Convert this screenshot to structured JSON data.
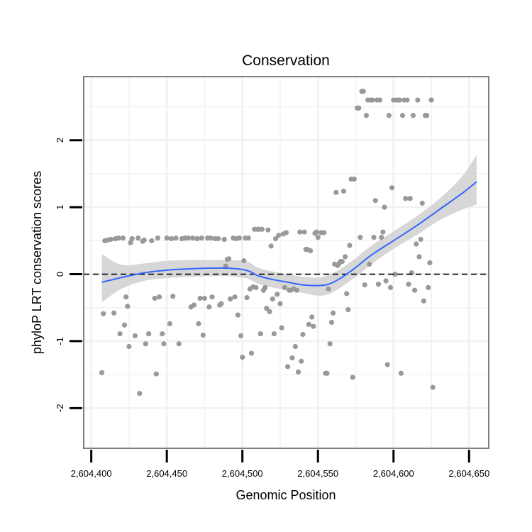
{
  "chart_data": {
    "type": "scatter",
    "title": "Conservation",
    "xlabel": "Genomic Position",
    "ylabel": "phyloP LRT conservation scores",
    "xlim": [
      2604395,
      2604663
    ],
    "ylim": [
      -2.6,
      2.95
    ],
    "x_ticks": [
      2604400,
      2604450,
      2604500,
      2604550,
      2604600,
      2604650
    ],
    "x_tick_labels": [
      "2,604,400",
      "2,604,450",
      "2,604,500",
      "2,604,550",
      "2,604,600",
      "2,604,650"
    ],
    "y_ticks": [
      -2,
      -1,
      0,
      1,
      2
    ],
    "y_tick_labels": [
      "-2",
      "-1",
      "0",
      "1",
      "2"
    ],
    "reference_line": {
      "y": 0,
      "style": "dashed"
    },
    "colors": {
      "points": "#999999",
      "smooth_line": "#3366ff",
      "confidence_band": "#d3d3d3",
      "panel_border": "#7f7f7f",
      "grid": "#f2f2f2"
    },
    "smooth": {
      "name": "loess fit",
      "x": [
        2604407,
        2604420,
        2604435,
        2604450,
        2604465,
        2604480,
        2604490,
        2604500,
        2604505,
        2604510,
        2604520,
        2604530,
        2604540,
        2604550,
        2604557,
        2604565,
        2604575,
        2604585,
        2604600,
        2604615,
        2604630,
        2604645,
        2604655
      ],
      "y": [
        -0.12,
        -0.05,
        0.02,
        0.06,
        0.08,
        0.09,
        0.09,
        0.07,
        0.04,
        -0.02,
        -0.08,
        -0.12,
        -0.16,
        -0.17,
        -0.15,
        -0.06,
        0.1,
        0.28,
        0.5,
        0.72,
        0.96,
        1.2,
        1.38
      ],
      "lower": [
        -0.42,
        -0.22,
        -0.1,
        -0.06,
        -0.04,
        -0.03,
        -0.03,
        -0.05,
        -0.08,
        -0.14,
        -0.2,
        -0.24,
        -0.28,
        -0.32,
        -0.3,
        -0.2,
        -0.04,
        0.14,
        0.38,
        0.58,
        0.8,
        0.96,
        1.04
      ],
      "upper": [
        0.3,
        0.14,
        0.16,
        0.2,
        0.21,
        0.21,
        0.21,
        0.2,
        0.17,
        0.1,
        0.04,
        0.0,
        -0.04,
        -0.05,
        -0.01,
        0.08,
        0.24,
        0.42,
        0.64,
        0.86,
        1.12,
        1.45,
        1.78
      ]
    },
    "points": [
      {
        "x": 2604407,
        "y": -1.47
      },
      {
        "x": 2604408,
        "y": -0.59
      },
      {
        "x": 2604409,
        "y": 0.5
      },
      {
        "x": 2604411,
        "y": 0.51
      },
      {
        "x": 2604413,
        "y": 0.52
      },
      {
        "x": 2604415,
        "y": -0.58
      },
      {
        "x": 2604416,
        "y": 0.53
      },
      {
        "x": 2604418,
        "y": 0.54
      },
      {
        "x": 2604419,
        "y": -0.89
      },
      {
        "x": 2604421,
        "y": 0.54
      },
      {
        "x": 2604422,
        "y": -0.76
      },
      {
        "x": 2604423,
        "y": -0.34
      },
      {
        "x": 2604424,
        "y": -0.48
      },
      {
        "x": 2604425,
        "y": -1.08
      },
      {
        "x": 2604426,
        "y": 0.47
      },
      {
        "x": 2604427,
        "y": 0.53
      },
      {
        "x": 2604429,
        "y": -0.92
      },
      {
        "x": 2604431,
        "y": 0.54
      },
      {
        "x": 2604432,
        "y": -1.78
      },
      {
        "x": 2604434,
        "y": 0.49
      },
      {
        "x": 2604435,
        "y": 0.51
      },
      {
        "x": 2604436,
        "y": -1.04
      },
      {
        "x": 2604438,
        "y": -0.89
      },
      {
        "x": 2604440,
        "y": 0.5
      },
      {
        "x": 2604442,
        "y": -0.36
      },
      {
        "x": 2604443,
        "y": -1.49
      },
      {
        "x": 2604444,
        "y": 0.54
      },
      {
        "x": 2604445,
        "y": -0.34
      },
      {
        "x": 2604447,
        "y": -0.89
      },
      {
        "x": 2604448,
        "y": -1.04
      },
      {
        "x": 2604450,
        "y": 0.54
      },
      {
        "x": 2604452,
        "y": -0.74
      },
      {
        "x": 2604453,
        "y": 0.53
      },
      {
        "x": 2604454,
        "y": -0.33
      },
      {
        "x": 2604456,
        "y": 0.54
      },
      {
        "x": 2604458,
        "y": -1.04
      },
      {
        "x": 2604460,
        "y": 0.53
      },
      {
        "x": 2604462,
        "y": 0.54
      },
      {
        "x": 2604464,
        "y": 0.54
      },
      {
        "x": 2604466,
        "y": -0.49
      },
      {
        "x": 2604467,
        "y": 0.54
      },
      {
        "x": 2604468,
        "y": -0.46
      },
      {
        "x": 2604470,
        "y": 0.53
      },
      {
        "x": 2604471,
        "y": -0.74
      },
      {
        "x": 2604472,
        "y": -0.36
      },
      {
        "x": 2604473,
        "y": 0.54
      },
      {
        "x": 2604474,
        "y": -0.91
      },
      {
        "x": 2604475,
        "y": -0.36
      },
      {
        "x": 2604477,
        "y": 0.54
      },
      {
        "x": 2604478,
        "y": -0.49
      },
      {
        "x": 2604479,
        "y": 0.54
      },
      {
        "x": 2604480,
        "y": -0.34
      },
      {
        "x": 2604482,
        "y": 0.53
      },
      {
        "x": 2604484,
        "y": 0.53
      },
      {
        "x": 2604485,
        "y": -0.46
      },
      {
        "x": 2604486,
        "y": -0.44
      },
      {
        "x": 2604488,
        "y": 0.52
      },
      {
        "x": 2604489,
        "y": 0.12
      },
      {
        "x": 2604490,
        "y": 0.22
      },
      {
        "x": 2604491,
        "y": 0.23
      },
      {
        "x": 2604492,
        "y": -0.37
      },
      {
        "x": 2604494,
        "y": 0.54
      },
      {
        "x": 2604495,
        "y": -0.34
      },
      {
        "x": 2604496,
        "y": 0.53
      },
      {
        "x": 2604497,
        "y": -0.61
      },
      {
        "x": 2604498,
        "y": 0.54
      },
      {
        "x": 2604499,
        "y": -0.92
      },
      {
        "x": 2604500,
        "y": -1.24
      },
      {
        "x": 2604501,
        "y": 0.2
      },
      {
        "x": 2604502,
        "y": 0.54
      },
      {
        "x": 2604503,
        "y": -0.35
      },
      {
        "x": 2604504,
        "y": 0.54
      },
      {
        "x": 2604505,
        "y": -0.22
      },
      {
        "x": 2604506,
        "y": -1.18
      },
      {
        "x": 2604507,
        "y": -0.19
      },
      {
        "x": 2604508,
        "y": 0.67
      },
      {
        "x": 2604509,
        "y": -0.2
      },
      {
        "x": 2604510,
        "y": 0.67
      },
      {
        "x": 2604511,
        "y": 0.67
      },
      {
        "x": 2604512,
        "y": -0.89
      },
      {
        "x": 2604513,
        "y": 0.67
      },
      {
        "x": 2604514,
        "y": -0.24
      },
      {
        "x": 2604515,
        "y": -0.2
      },
      {
        "x": 2604516,
        "y": -0.51
      },
      {
        "x": 2604517,
        "y": 0.66
      },
      {
        "x": 2604518,
        "y": -0.56
      },
      {
        "x": 2604519,
        "y": 0.42
      },
      {
        "x": 2604520,
        "y": -0.37
      },
      {
        "x": 2604521,
        "y": -0.89
      },
      {
        "x": 2604522,
        "y": 0.53
      },
      {
        "x": 2604523,
        "y": -0.3
      },
      {
        "x": 2604524,
        "y": 0.58
      },
      {
        "x": 2604525,
        "y": -0.44
      },
      {
        "x": 2604526,
        "y": -0.8
      },
      {
        "x": 2604527,
        "y": 0.6
      },
      {
        "x": 2604528,
        "y": -0.2
      },
      {
        "x": 2604529,
        "y": 0.62
      },
      {
        "x": 2604530,
        "y": -1.38
      },
      {
        "x": 2604531,
        "y": -0.24
      },
      {
        "x": 2604532,
        "y": -0.24
      },
      {
        "x": 2604533,
        "y": -1.25
      },
      {
        "x": 2604534,
        "y": -0.22
      },
      {
        "x": 2604535,
        "y": -1.08
      },
      {
        "x": 2604536,
        "y": -0.24
      },
      {
        "x": 2604537,
        "y": -1.46
      },
      {
        "x": 2604538,
        "y": 0.63
      },
      {
        "x": 2604539,
        "y": -1.3
      },
      {
        "x": 2604540,
        "y": -0.9
      },
      {
        "x": 2604541,
        "y": 0.63
      },
      {
        "x": 2604542,
        "y": 0.37
      },
      {
        "x": 2604543,
        "y": 0.37
      },
      {
        "x": 2604544,
        "y": -0.75
      },
      {
        "x": 2604545,
        "y": 0.35
      },
      {
        "x": 2604546,
        "y": -0.64
      },
      {
        "x": 2604547,
        "y": -0.78
      },
      {
        "x": 2604548,
        "y": 0.61
      },
      {
        "x": 2604549,
        "y": 0.63
      },
      {
        "x": 2604550,
        "y": 0.55
      },
      {
        "x": 2604552,
        "y": 0.62
      },
      {
        "x": 2604554,
        "y": 0.62
      },
      {
        "x": 2604555,
        "y": -1.48
      },
      {
        "x": 2604556,
        "y": -1.48
      },
      {
        "x": 2604557,
        "y": -0.22
      },
      {
        "x": 2604558,
        "y": -1.04
      },
      {
        "x": 2604559,
        "y": -0.72
      },
      {
        "x": 2604560,
        "y": -0.58
      },
      {
        "x": 2604561,
        "y": 0.15
      },
      {
        "x": 2604562,
        "y": 1.22
      },
      {
        "x": 2604563,
        "y": 0.13
      },
      {
        "x": 2604564,
        "y": 0.16
      },
      {
        "x": 2604565,
        "y": 0.19
      },
      {
        "x": 2604566,
        "y": 0.19
      },
      {
        "x": 2604567,
        "y": 1.24
      },
      {
        "x": 2604568,
        "y": 0.26
      },
      {
        "x": 2604569,
        "y": -0.29
      },
      {
        "x": 2604570,
        "y": -0.53
      },
      {
        "x": 2604571,
        "y": 0.43
      },
      {
        "x": 2604572,
        "y": 1.42
      },
      {
        "x": 2604573,
        "y": -1.54
      },
      {
        "x": 2604574,
        "y": 1.42
      },
      {
        "x": 2604576,
        "y": 2.48
      },
      {
        "x": 2604577,
        "y": 2.48
      },
      {
        "x": 2604578,
        "y": 0.55
      },
      {
        "x": 2604579,
        "y": 2.73
      },
      {
        "x": 2604580,
        "y": 2.73
      },
      {
        "x": 2604581,
        "y": -0.16
      },
      {
        "x": 2604582,
        "y": 2.37
      },
      {
        "x": 2604583,
        "y": 2.6
      },
      {
        "x": 2604584,
        "y": 0.15
      },
      {
        "x": 2604585,
        "y": 2.6
      },
      {
        "x": 2604586,
        "y": 2.6
      },
      {
        "x": 2604587,
        "y": 0.55
      },
      {
        "x": 2604588,
        "y": 1.1
      },
      {
        "x": 2604589,
        "y": 2.6
      },
      {
        "x": 2604590,
        "y": -0.15
      },
      {
        "x": 2604591,
        "y": 2.6
      },
      {
        "x": 2604592,
        "y": 0.55
      },
      {
        "x": 2604593,
        "y": 0.63
      },
      {
        "x": 2604594,
        "y": 1.0
      },
      {
        "x": 2604595,
        "y": -0.1
      },
      {
        "x": 2604596,
        "y": -1.35
      },
      {
        "x": 2604597,
        "y": 2.37
      },
      {
        "x": 2604598,
        "y": -0.2
      },
      {
        "x": 2604599,
        "y": 1.29
      },
      {
        "x": 2604600,
        "y": 2.6
      },
      {
        "x": 2604601,
        "y": 0.0
      },
      {
        "x": 2604602,
        "y": 2.6
      },
      {
        "x": 2604603,
        "y": 2.6
      },
      {
        "x": 2604604,
        "y": 2.6
      },
      {
        "x": 2604605,
        "y": -1.48
      },
      {
        "x": 2604606,
        "y": 2.37
      },
      {
        "x": 2604607,
        "y": 2.6
      },
      {
        "x": 2604608,
        "y": 1.13
      },
      {
        "x": 2604609,
        "y": 2.6
      },
      {
        "x": 2604610,
        "y": -0.15
      },
      {
        "x": 2604611,
        "y": 1.13
      },
      {
        "x": 2604612,
        "y": 0.02
      },
      {
        "x": 2604613,
        "y": 2.37
      },
      {
        "x": 2604614,
        "y": -0.24
      },
      {
        "x": 2604615,
        "y": 0.45
      },
      {
        "x": 2604616,
        "y": 2.6
      },
      {
        "x": 2604617,
        "y": 0.26
      },
      {
        "x": 2604618,
        "y": 0.52
      },
      {
        "x": 2604619,
        "y": 1.06
      },
      {
        "x": 2604620,
        "y": -0.4
      },
      {
        "x": 2604621,
        "y": 2.37
      },
      {
        "x": 2604622,
        "y": 2.37
      },
      {
        "x": 2604623,
        "y": -0.2
      },
      {
        "x": 2604624,
        "y": 0.17
      },
      {
        "x": 2604625,
        "y": 2.6
      },
      {
        "x": 2604626,
        "y": -1.69
      }
    ]
  }
}
